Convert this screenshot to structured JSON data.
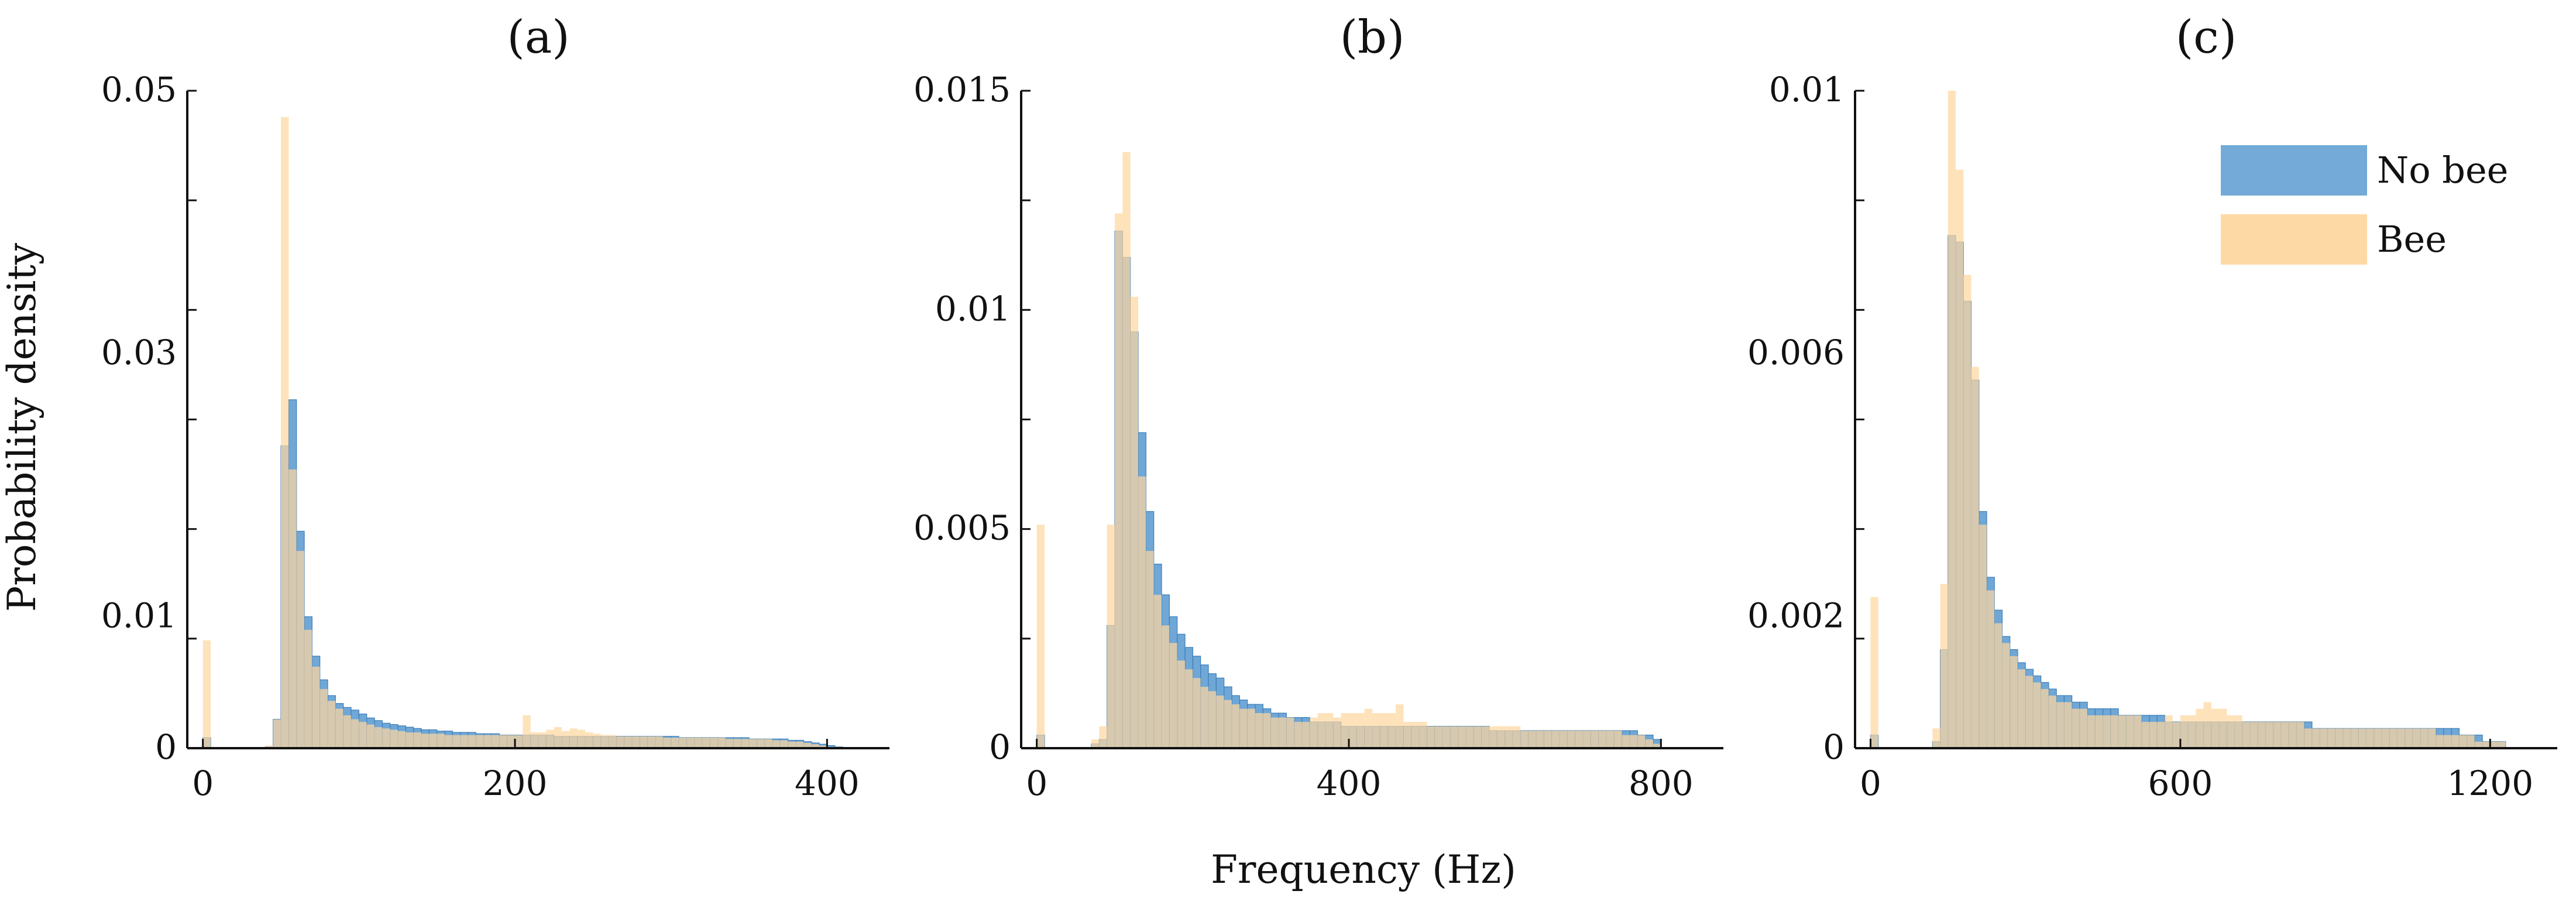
{
  "figure": {
    "xlabel": "Frequency (Hz)",
    "ylabel": "Probability density",
    "legend": [
      {
        "name": "No bee",
        "color": "#5b9bd0"
      },
      {
        "name": "Bee",
        "color": "#fdd7a0"
      }
    ],
    "colors": {
      "no_bee": "#5b9bd0",
      "bee": "#fdd7a0",
      "overlap": "#bfb38b"
    }
  },
  "chart_data": [
    {
      "type": "bar",
      "title": "(a)",
      "panel_letter": "a",
      "xlabel": "Frequency (Hz)",
      "ylabel": "Probability density",
      "xlim": [
        -10,
        440
      ],
      "ylim": [
        0,
        0.05
      ],
      "xticks": [
        0,
        200,
        400
      ],
      "xtick_labels": [
        "0",
        "200",
        "400"
      ],
      "yticks": [
        0,
        0.01,
        0.03,
        0.05
      ],
      "ytick_labels": [
        "0",
        "0.01",
        "0.03",
        "0.05"
      ],
      "bin_width": 5,
      "bin_starts": [
        0,
        5,
        10,
        15,
        20,
        25,
        30,
        35,
        40,
        45,
        50,
        55,
        60,
        65,
        70,
        75,
        80,
        85,
        90,
        95,
        100,
        105,
        110,
        115,
        120,
        125,
        130,
        135,
        140,
        145,
        150,
        155,
        160,
        165,
        170,
        175,
        180,
        185,
        190,
        195,
        200,
        205,
        210,
        215,
        220,
        225,
        230,
        235,
        240,
        245,
        250,
        255,
        260,
        265,
        270,
        275,
        280,
        285,
        290,
        295,
        300,
        305,
        310,
        315,
        320,
        325,
        330,
        335,
        340,
        345,
        350,
        355,
        360,
        365,
        370,
        375,
        380,
        385,
        390,
        395,
        400,
        405
      ],
      "series": [
        {
          "name": "No bee",
          "values": [
            0.0008,
            0,
            0,
            0,
            0,
            0,
            0,
            0,
            0.0001,
            0.0022,
            0.023,
            0.0265,
            0.0165,
            0.01,
            0.007,
            0.0052,
            0.004,
            0.0034,
            0.0031,
            0.0029,
            0.0026,
            0.0023,
            0.0021,
            0.0019,
            0.0018,
            0.0017,
            0.0016,
            0.0015,
            0.0014,
            0.0014,
            0.0013,
            0.0013,
            0.0012,
            0.0012,
            0.0012,
            0.0011,
            0.0011,
            0.0011,
            0.001,
            0.001,
            0.001,
            0.001,
            0.001,
            0.001,
            0.001,
            0.0009,
            0.0009,
            0.0009,
            0.0009,
            0.0009,
            0.0009,
            0.0009,
            0.0009,
            0.0009,
            0.0009,
            0.0009,
            0.0009,
            0.0009,
            0.0009,
            0.0009,
            0.0009,
            0.0008,
            0.0008,
            0.0008,
            0.0008,
            0.0008,
            0.0008,
            0.0008,
            0.0008,
            0.0008,
            0.0007,
            0.0007,
            0.0007,
            0.0007,
            0.0007,
            0.0006,
            0.0006,
            0.0005,
            0.0004,
            0.0003,
            0.0002,
            0.0001
          ]
        },
        {
          "name": "Bee",
          "values": [
            0.0082,
            0,
            0,
            0,
            0,
            0,
            0,
            0,
            0.0002,
            0.0022,
            0.048,
            0.0212,
            0.015,
            0.009,
            0.0062,
            0.0045,
            0.0036,
            0.003,
            0.0025,
            0.0022,
            0.002,
            0.0018,
            0.0016,
            0.0015,
            0.0014,
            0.0013,
            0.0012,
            0.0012,
            0.0011,
            0.0011,
            0.0011,
            0.001,
            0.001,
            0.001,
            0.001,
            0.001,
            0.001,
            0.001,
            0.001,
            0.001,
            0.001,
            0.0025,
            0.0012,
            0.0012,
            0.0014,
            0.0016,
            0.0013,
            0.0015,
            0.0014,
            0.0012,
            0.0011,
            0.001,
            0.001,
            0.0009,
            0.0009,
            0.0009,
            0.0009,
            0.0009,
            0.0009,
            0.0008,
            0.0008,
            0.0008,
            0.0008,
            0.0008,
            0.0008,
            0.0008,
            0.0008,
            0.0007,
            0.0007,
            0.0007,
            0.0007,
            0.0007,
            0.0007,
            0.0006,
            0.0006,
            0.0005,
            0.0005,
            0.0004,
            0.0003,
            0.0002,
            0.0001,
            0.0001
          ]
        }
      ]
    },
    {
      "type": "bar",
      "title": "(b)",
      "panel_letter": "b",
      "xlabel": "Frequency (Hz)",
      "ylabel": "Probability density",
      "xlim": [
        -20,
        880
      ],
      "ylim": [
        0,
        0.015
      ],
      "xticks": [
        0,
        400,
        800
      ],
      "xtick_labels": [
        "0",
        "400",
        "800"
      ],
      "yticks": [
        0,
        0.005,
        0.01,
        0.015
      ],
      "ytick_labels": [
        "0",
        "0.005",
        "0.01",
        "0.015"
      ],
      "bin_width": 10,
      "bin_starts": [
        0,
        10,
        20,
        30,
        40,
        50,
        60,
        70,
        80,
        90,
        100,
        110,
        120,
        130,
        140,
        150,
        160,
        170,
        180,
        190,
        200,
        210,
        220,
        230,
        240,
        250,
        260,
        270,
        280,
        290,
        300,
        310,
        320,
        330,
        340,
        350,
        360,
        370,
        380,
        390,
        400,
        410,
        420,
        430,
        440,
        450,
        460,
        470,
        480,
        490,
        500,
        510,
        520,
        530,
        540,
        550,
        560,
        570,
        580,
        590,
        600,
        610,
        620,
        630,
        640,
        650,
        660,
        670,
        680,
        690,
        700,
        710,
        720,
        730,
        740,
        750,
        760,
        770,
        780,
        790
      ],
      "series": [
        {
          "name": "No bee",
          "values": [
            0.0003,
            0,
            0,
            0,
            0,
            0,
            0,
            0.0001,
            0.0002,
            0.0028,
            0.0118,
            0.0112,
            0.0095,
            0.0072,
            0.0054,
            0.0042,
            0.0035,
            0.003,
            0.0026,
            0.0023,
            0.0021,
            0.0019,
            0.0017,
            0.0016,
            0.0014,
            0.0012,
            0.0011,
            0.001,
            0.001,
            0.0009,
            0.0008,
            0.0008,
            0.0007,
            0.0007,
            0.0007,
            0.0006,
            0.0006,
            0.0006,
            0.0006,
            0.0005,
            0.0005,
            0.0005,
            0.0005,
            0.0005,
            0.0005,
            0.0005,
            0.0005,
            0.0005,
            0.0005,
            0.0005,
            0.0005,
            0.0005,
            0.0005,
            0.0005,
            0.0005,
            0.0005,
            0.0005,
            0.0005,
            0.0004,
            0.0004,
            0.0004,
            0.0004,
            0.0004,
            0.0004,
            0.0004,
            0.0004,
            0.0004,
            0.0004,
            0.0004,
            0.0004,
            0.0004,
            0.0004,
            0.0004,
            0.0004,
            0.0004,
            0.0004,
            0.0004,
            0.0003,
            0.0003,
            0.0002
          ]
        },
        {
          "name": "Bee",
          "values": [
            0.0051,
            0,
            0,
            0,
            0,
            0,
            0,
            0.0002,
            0.0005,
            0.0051,
            0.0122,
            0.0136,
            0.0103,
            0.0062,
            0.0045,
            0.0035,
            0.0028,
            0.0024,
            0.002,
            0.0018,
            0.0016,
            0.0014,
            0.0013,
            0.0012,
            0.0011,
            0.001,
            0.0009,
            0.0009,
            0.0008,
            0.0008,
            0.0007,
            0.0007,
            0.0007,
            0.0006,
            0.0006,
            0.0007,
            0.0008,
            0.0008,
            0.0007,
            0.0008,
            0.0008,
            0.0008,
            0.0009,
            0.0008,
            0.0008,
            0.0008,
            0.001,
            0.0006,
            0.0006,
            0.0006,
            0.0005,
            0.0005,
            0.0005,
            0.0005,
            0.0005,
            0.0005,
            0.0005,
            0.0005,
            0.0005,
            0.0005,
            0.0005,
            0.0005,
            0.0004,
            0.0004,
            0.0004,
            0.0004,
            0.0004,
            0.0004,
            0.0004,
            0.0004,
            0.0004,
            0.0004,
            0.0004,
            0.0004,
            0.0004,
            0.0003,
            0.0003,
            0.0003,
            0.0002,
            0.0001
          ]
        }
      ]
    },
    {
      "type": "bar",
      "title": "(c)",
      "panel_letter": "c",
      "xlabel": "Frequency (Hz)",
      "ylabel": "Probability density",
      "xlim": [
        -30,
        1330
      ],
      "ylim": [
        0,
        0.01
      ],
      "xticks": [
        0,
        600,
        1200
      ],
      "xtick_labels": [
        "0",
        "600",
        "1200"
      ],
      "yticks": [
        0,
        0.002,
        0.006,
        0.01
      ],
      "ytick_labels": [
        "0",
        "0.002",
        "0.006",
        "0.01"
      ],
      "bin_width": 15,
      "bin_starts": [
        0,
        15,
        30,
        45,
        60,
        75,
        90,
        105,
        120,
        135,
        150,
        165,
        180,
        195,
        210,
        225,
        240,
        255,
        270,
        285,
        300,
        315,
        330,
        345,
        360,
        375,
        390,
        405,
        420,
        435,
        450,
        465,
        480,
        495,
        510,
        525,
        540,
        555,
        570,
        585,
        600,
        615,
        630,
        645,
        660,
        675,
        690,
        705,
        720,
        735,
        750,
        765,
        780,
        795,
        810,
        825,
        840,
        855,
        870,
        885,
        900,
        915,
        930,
        945,
        960,
        975,
        990,
        1005,
        1020,
        1035,
        1050,
        1065,
        1080,
        1095,
        1110,
        1125,
        1140,
        1155,
        1170,
        1185,
        1200,
        1215
      ],
      "series": [
        {
          "name": "No bee",
          "values": [
            0.0002,
            0,
            0,
            0,
            0,
            0,
            0,
            0,
            0.0001,
            0.0015,
            0.0078,
            0.0077,
            0.0068,
            0.0056,
            0.0036,
            0.0026,
            0.0021,
            0.0017,
            0.0015,
            0.0013,
            0.0012,
            0.0011,
            0.001,
            0.0009,
            0.0008,
            0.0008,
            0.0007,
            0.0007,
            0.0006,
            0.0006,
            0.0006,
            0.0006,
            0.0005,
            0.0005,
            0.0005,
            0.0005,
            0.0005,
            0.0005,
            0.0004,
            0.0004,
            0.0004,
            0.0004,
            0.0004,
            0.0004,
            0.0004,
            0.0004,
            0.0004,
            0.0004,
            0.0004,
            0.0004,
            0.0004,
            0.0004,
            0.0004,
            0.0004,
            0.0004,
            0.0004,
            0.0004,
            0.0003,
            0.0003,
            0.0003,
            0.0003,
            0.0003,
            0.0003,
            0.0003,
            0.0003,
            0.0003,
            0.0003,
            0.0003,
            0.0003,
            0.0003,
            0.0003,
            0.0003,
            0.0003,
            0.0003,
            0.0003,
            0.0003,
            0.0002,
            0.0002,
            0.0002,
            0.0001,
            0.0001,
            0.0001
          ]
        },
        {
          "name": "Bee",
          "values": [
            0.0023,
            0,
            0,
            0,
            0,
            0,
            0,
            0,
            0.0003,
            0.0025,
            0.01,
            0.0088,
            0.0072,
            0.0058,
            0.0034,
            0.0024,
            0.0019,
            0.0016,
            0.0014,
            0.0012,
            0.0011,
            0.001,
            0.0009,
            0.0008,
            0.0007,
            0.0007,
            0.0006,
            0.0006,
            0.0005,
            0.0005,
            0.0005,
            0.0005,
            0.0005,
            0.0005,
            0.0005,
            0.0004,
            0.0004,
            0.0004,
            0.0005,
            0.0004,
            0.0005,
            0.0005,
            0.0006,
            0.0007,
            0.0006,
            0.0006,
            0.0005,
            0.0005,
            0.0004,
            0.0004,
            0.0004,
            0.0004,
            0.0004,
            0.0004,
            0.0004,
            0.0004,
            0.0003,
            0.0003,
            0.0003,
            0.0003,
            0.0003,
            0.0003,
            0.0003,
            0.0003,
            0.0003,
            0.0003,
            0.0003,
            0.0003,
            0.0003,
            0.0003,
            0.0003,
            0.0003,
            0.0003,
            0.0002,
            0.0002,
            0.0002,
            0.0002,
            0.0002,
            0.0001,
            0.0001,
            0.0001,
            0.0001
          ]
        }
      ]
    }
  ]
}
